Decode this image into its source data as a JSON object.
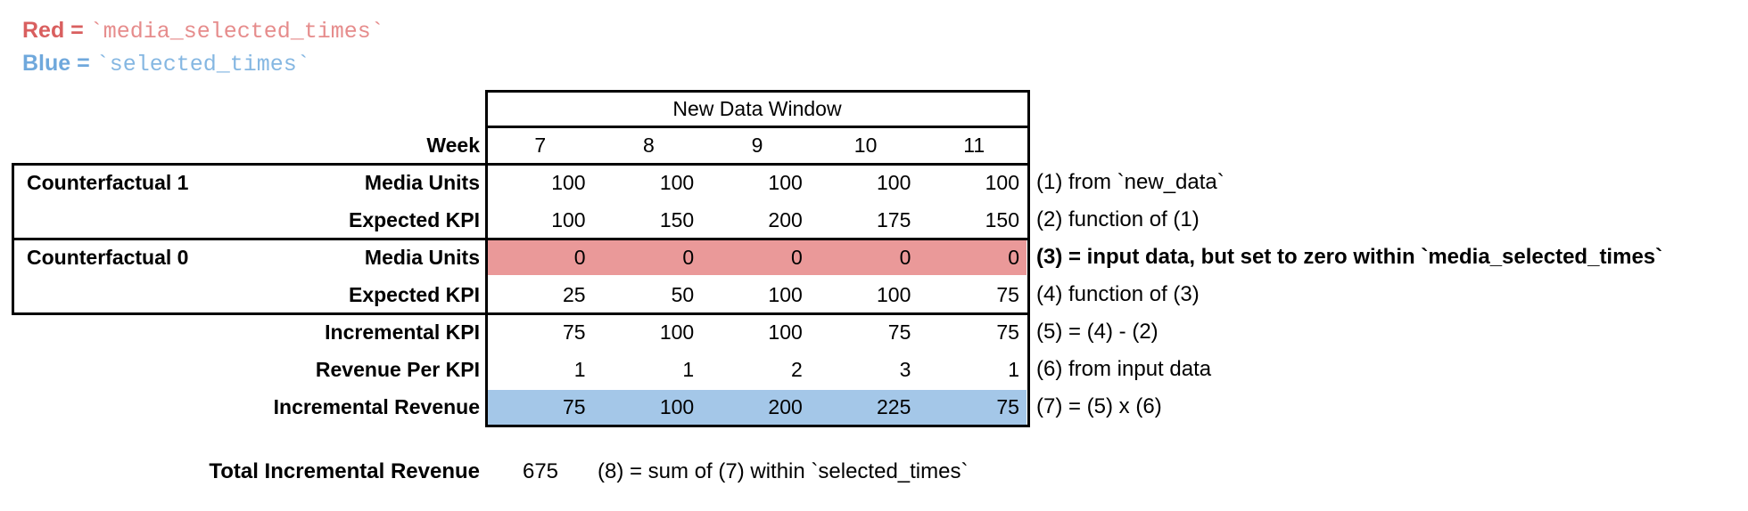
{
  "legend": {
    "red_label": "Red =",
    "red_code": "`media_selected_times`",
    "blue_label": "Blue =",
    "blue_code": "`selected_times`",
    "red_label_color": "#d95f5f",
    "red_code_color": "#e68c8c",
    "blue_label_color": "#6fa8dc",
    "blue_code_color": "#85b7e2"
  },
  "table": {
    "header": "New Data Window",
    "week_label": "Week",
    "weeks": [
      "7",
      "8",
      "9",
      "10",
      "11"
    ],
    "rows": [
      {
        "group": "Counterfactual 1",
        "label": "Media Units",
        "values": [
          "100",
          "100",
          "100",
          "100",
          "100"
        ],
        "highlight": null,
        "annotation": "(1) from `new_data`",
        "annotation_bold": false
      },
      {
        "group": null,
        "label": "Expected KPI",
        "values": [
          "100",
          "150",
          "200",
          "175",
          "150"
        ],
        "highlight": null,
        "annotation": "(2) function of (1)",
        "annotation_bold": false
      },
      {
        "group": "Counterfactual 0",
        "label": "Media Units",
        "values": [
          "0",
          "0",
          "0",
          "0",
          "0"
        ],
        "highlight": "red",
        "annotation": "(3) = input data, but set to zero within `media_selected_times`",
        "annotation_bold": true
      },
      {
        "group": null,
        "label": "Expected KPI",
        "values": [
          "25",
          "50",
          "100",
          "100",
          "75"
        ],
        "highlight": null,
        "annotation": "(4) function of (3)",
        "annotation_bold": false
      },
      {
        "group": null,
        "label": "Incremental KPI",
        "values": [
          "75",
          "100",
          "100",
          "75",
          "75"
        ],
        "highlight": null,
        "annotation": "(5) = (4) - (2)",
        "annotation_bold": false
      },
      {
        "group": null,
        "label": "Revenue Per KPI",
        "values": [
          "1",
          "1",
          "2",
          "3",
          "1"
        ],
        "highlight": null,
        "annotation": "(6) from input data",
        "annotation_bold": false
      },
      {
        "group": null,
        "label": "Incremental Revenue",
        "values": [
          "75",
          "100",
          "200",
          "225",
          "75"
        ],
        "highlight": "blue",
        "annotation": "(7) = (5) x (6)",
        "annotation_bold": false
      }
    ],
    "highlight_colors": {
      "red": "#ea9999",
      "blue": "#a4c7e8"
    },
    "border_color": "#000000"
  },
  "total": {
    "label": "Total Incremental Revenue",
    "value": "675",
    "annotation": "(8) = sum of (7) within `selected_times`"
  }
}
